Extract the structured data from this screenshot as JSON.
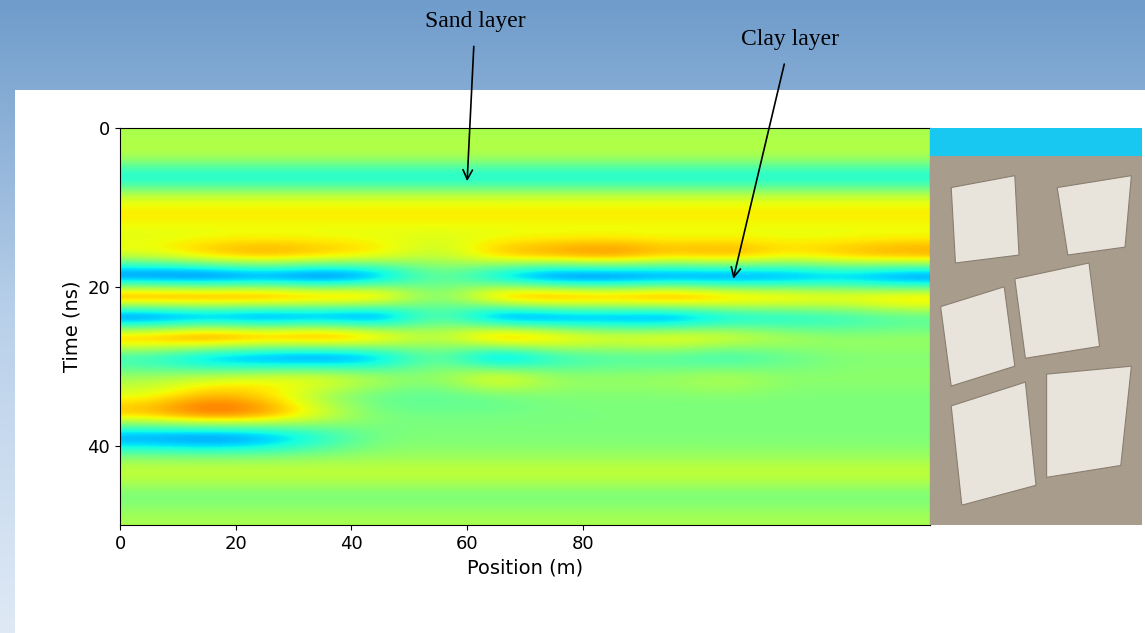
{
  "chart_data": {
    "type": "heatmap",
    "xlabel": "Position (m)",
    "ylabel": "Time (ns)",
    "xlim": [
      0,
      140
    ],
    "xticks": [
      0,
      20,
      40,
      60,
      80
    ],
    "ylim": [
      50,
      0
    ],
    "yticks": [
      0,
      20,
      40
    ],
    "x": [
      5,
      15,
      25,
      35,
      45,
      55,
      65,
      75,
      85,
      95,
      105,
      115,
      125,
      135
    ],
    "y": [
      1.25,
      3.75,
      6.25,
      8.75,
      11.25,
      13.75,
      16.25,
      18.75,
      21.25,
      23.75,
      26.25,
      28.75,
      31.25,
      33.75,
      36.25,
      38.75,
      41.25,
      43.75,
      46.25,
      48.75
    ],
    "cells": [
      [
        0.1,
        0.1,
        0.1,
        0.1,
        0.1,
        0.1,
        0.1,
        0.1,
        0.1,
        0.1,
        0.1,
        0.1,
        0.1,
        0.1
      ],
      [
        0.15,
        0.15,
        0.15,
        0.15,
        0.15,
        0.15,
        0.15,
        0.15,
        0.15,
        0.15,
        0.15,
        0.15,
        0.15,
        0.15
      ],
      [
        -0.35,
        -0.35,
        -0.35,
        -0.35,
        -0.35,
        -0.35,
        -0.35,
        -0.35,
        -0.35,
        -0.35,
        -0.35,
        -0.35,
        -0.35,
        -0.35
      ],
      [
        0.25,
        0.25,
        0.25,
        0.25,
        0.25,
        0.25,
        0.25,
        0.25,
        0.25,
        0.25,
        0.25,
        0.25,
        0.25,
        0.25
      ],
      [
        0.3,
        0.3,
        0.3,
        0.3,
        0.3,
        0.3,
        0.3,
        0.3,
        0.3,
        0.3,
        0.3,
        0.3,
        0.3,
        0.3
      ],
      [
        0.2,
        0.2,
        0.2,
        0.2,
        0.2,
        0.2,
        0.2,
        0.2,
        0.2,
        0.2,
        0.2,
        0.2,
        0.2,
        0.2
      ],
      [
        0.3,
        0.5,
        0.6,
        0.5,
        0.4,
        0.1,
        0.5,
        0.6,
        0.7,
        0.5,
        0.6,
        0.4,
        0.5,
        0.6
      ],
      [
        -0.8,
        -0.9,
        -0.8,
        -0.9,
        -0.7,
        0,
        -0.6,
        -0.9,
        -0.9,
        -0.8,
        -0.8,
        -0.7,
        -0.6,
        -0.8
      ],
      [
        0.9,
        0.9,
        0.9,
        0.8,
        0.8,
        -0.1,
        0.8,
        0.9,
        0.8,
        0.9,
        0.7,
        0.6,
        0.5,
        0.6
      ],
      [
        -0.9,
        -0.8,
        -0.9,
        -0.8,
        -0.9,
        0,
        -0.9,
        -0.8,
        -0.7,
        -0.8,
        -0.5,
        -0.4,
        -0.3,
        -0.2
      ],
      [
        0.7,
        0.9,
        0.8,
        0.9,
        0.7,
        0.1,
        0.9,
        0.6,
        0.4,
        0.5,
        0.4,
        0.2,
        0.1,
        0.1
      ],
      [
        -0.3,
        -0.6,
        -0.7,
        -0.8,
        -0.6,
        0,
        -0.8,
        -0.3,
        -0.2,
        -0.2,
        -0.3,
        -0.1,
        0,
        0
      ],
      [
        0.1,
        0.2,
        0.3,
        0.4,
        0.2,
        0.05,
        0.5,
        0.1,
        0.1,
        0.1,
        0.2,
        0.05,
        0.05,
        0.05
      ],
      [
        0.2,
        0.4,
        0.3,
        0,
        -0.1,
        -0.1,
        -0.1,
        0,
        0,
        0,
        0,
        0,
        0,
        0
      ],
      [
        0.5,
        0.7,
        0.6,
        0.3,
        0,
        0,
        0,
        0,
        0,
        0,
        0,
        0,
        0,
        0
      ],
      [
        -0.6,
        -0.7,
        -0.6,
        -0.3,
        0,
        0,
        0,
        0,
        0,
        0,
        0,
        0,
        0,
        0
      ],
      [
        0.05,
        0.05,
        0.05,
        0.05,
        0.05,
        0.05,
        0.05,
        0.05,
        0.05,
        0.05,
        0.05,
        0.05,
        0.05,
        0.05
      ],
      [
        0.2,
        0.2,
        0.2,
        0.2,
        0.2,
        0.2,
        0.2,
        0.2,
        0.2,
        0.2,
        0.2,
        0.2,
        0.2,
        0.2
      ],
      [
        -0.05,
        -0.05,
        -0.05,
        -0.05,
        -0.05,
        -0.05,
        -0.05,
        -0.05,
        -0.05,
        -0.05,
        -0.05,
        -0.05,
        -0.05,
        -0.05
      ],
      [
        0.1,
        0.1,
        0.1,
        0.1,
        0.1,
        0.1,
        0.1,
        0.1,
        0.1,
        0.1,
        0.1,
        0.1,
        0.1,
        0.1
      ]
    ],
    "annotations": [
      {
        "text": "Sand layer",
        "xy": [
          60,
          6.7
        ]
      },
      {
        "text": "Clay layer",
        "xy": [
          106,
          19
        ]
      }
    ]
  }
}
